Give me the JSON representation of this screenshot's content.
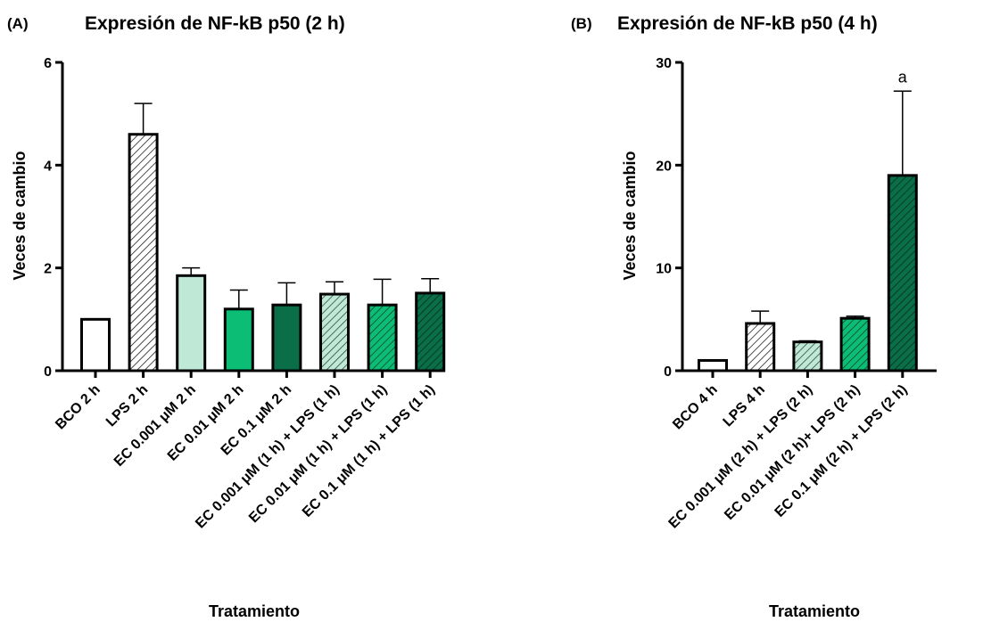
{
  "chart_data": [
    {
      "type": "bar",
      "panel_label": "(A)",
      "title": "Expresión de NF-kB p50 (2 h)",
      "xlabel": "Tratamiento",
      "ylabel": "Veces de cambio",
      "ylim": [
        0,
        6
      ],
      "yticks": [
        "0",
        "2",
        "4",
        "6"
      ],
      "categories": [
        "BCO 2 h",
        "LPS 2 h",
        "EC 0.001 μM 2 h",
        "EC 0.01 μM 2 h",
        "EC 0.1 μM 2 h",
        "EC 0.001 μM (1 h) + LPS (1 h)",
        "EC 0.01 μM (1 h) + LPS (1 h)",
        "EC 0.1 μM (1 h) + LPS (1 h)"
      ],
      "values": [
        1.0,
        4.6,
        1.85,
        1.2,
        1.28,
        1.49,
        1.28,
        1.51
      ],
      "errors": [
        0.0,
        0.6,
        0.15,
        0.37,
        0.43,
        0.24,
        0.5,
        0.28
      ],
      "colors": [
        "#ffffff",
        "#ffffff",
        "#bfe8d6",
        "#0bbd75",
        "#0a6e48",
        "#bfe8d6",
        "#0bbd75",
        "#0a6e48"
      ],
      "hatched": [
        false,
        true,
        false,
        false,
        false,
        true,
        true,
        true
      ],
      "annotations": [
        "",
        "",
        "",
        "",
        "",
        "",
        "",
        ""
      ]
    },
    {
      "type": "bar",
      "panel_label": "(B)",
      "title": "Expresión de NF-kB p50 (4 h)",
      "xlabel": "Tratamiento",
      "ylabel": "Veces de cambio",
      "ylim": [
        0,
        30
      ],
      "yticks": [
        "0",
        "10",
        "20",
        "30"
      ],
      "categories": [
        "BCO 4 h",
        "LPS 4 h",
        "EC 0.001 μM (2 h) + LPS (2 h)",
        "EC 0.01 μM (2 h)+ LPS (2 h)",
        "EC 0.1 μM (2 h) + LPS (2 h)"
      ],
      "values": [
        1.0,
        4.6,
        2.8,
        5.1,
        19.0
      ],
      "errors": [
        0.0,
        1.2,
        0.1,
        0.2,
        8.2
      ],
      "colors": [
        "#ffffff",
        "#ffffff",
        "#bfe8d6",
        "#0bbd75",
        "#0a6e48"
      ],
      "hatched": [
        false,
        true,
        true,
        true,
        true
      ],
      "annotations": [
        "",
        "",
        "",
        "",
        "a"
      ]
    }
  ]
}
